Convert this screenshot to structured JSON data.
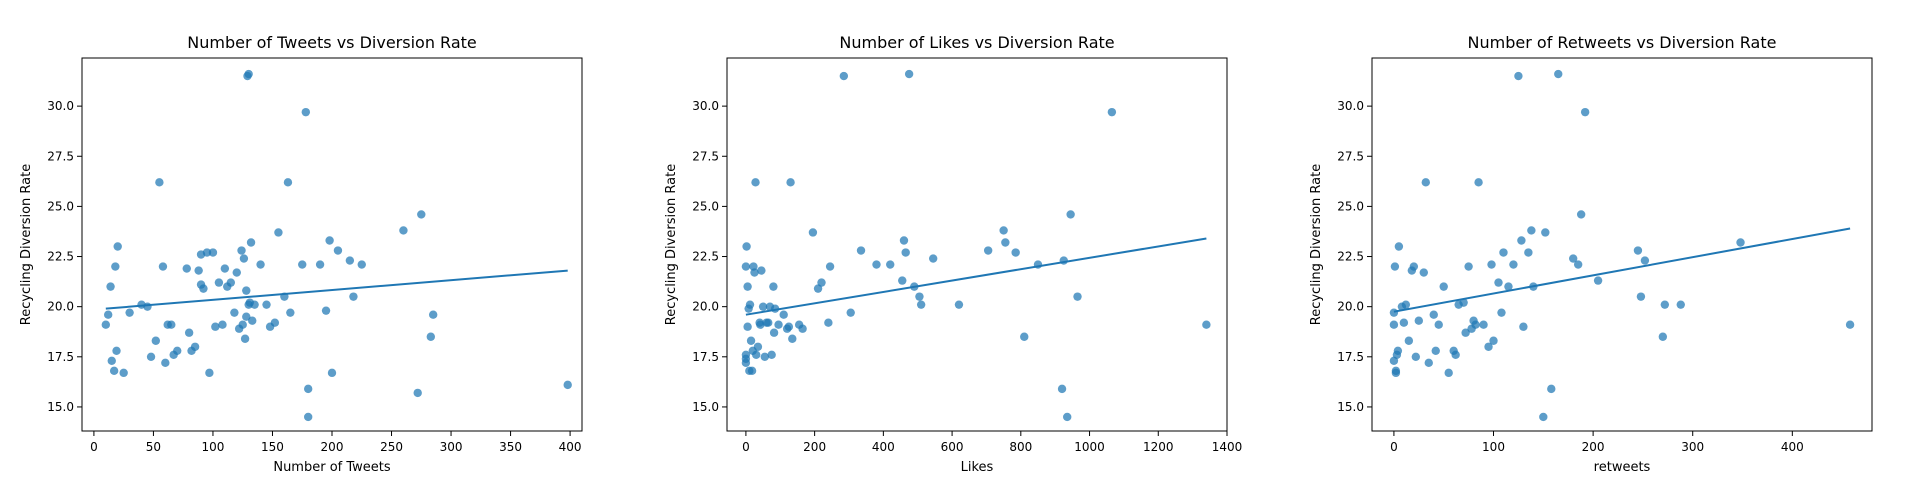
{
  "chart_data": [
    {
      "type": "scatter",
      "title": "Number of Tweets vs Diversion Rate",
      "xlabel": "Number of Tweets",
      "ylabel": "Recycling Diversion Rate",
      "xlim": [
        -10,
        410
      ],
      "ylim": [
        13.8,
        32.4
      ],
      "xticks": [
        0,
        50,
        100,
        150,
        200,
        250,
        300,
        350,
        400
      ],
      "yticks": [
        15.0,
        17.5,
        20.0,
        22.5,
        25.0,
        27.5,
        30.0
      ],
      "grid": false,
      "point_color": "#1f77b4",
      "trendline": {
        "x": [
          10,
          398
        ],
        "y": [
          19.9,
          21.8
        ]
      },
      "x": [
        10,
        12,
        14,
        15,
        17,
        18,
        19,
        20,
        25,
        30,
        40,
        45,
        48,
        52,
        55,
        58,
        60,
        62,
        65,
        67,
        70,
        78,
        80,
        82,
        85,
        88,
        90,
        90,
        92,
        95,
        97,
        100,
        102,
        105,
        108,
        110,
        112,
        115,
        118,
        120,
        122,
        124,
        125,
        126,
        127,
        128,
        128,
        129,
        130,
        130,
        131,
        132,
        133,
        135,
        140,
        145,
        148,
        152,
        155,
        160,
        163,
        165,
        175,
        178,
        180,
        180,
        190,
        195,
        198,
        200,
        205,
        215,
        218,
        225,
        260,
        272,
        275,
        283,
        285,
        398
      ],
      "y": [
        19.1,
        19.6,
        21.0,
        17.3,
        16.8,
        22.0,
        17.8,
        23.0,
        16.7,
        19.7,
        20.1,
        20.0,
        17.5,
        18.3,
        26.2,
        22.0,
        17.2,
        19.1,
        19.1,
        17.6,
        17.8,
        21.9,
        18.7,
        17.8,
        18.0,
        21.8,
        21.1,
        22.6,
        20.9,
        22.7,
        16.7,
        22.7,
        19.0,
        21.2,
        19.1,
        21.9,
        21.0,
        21.2,
        19.7,
        21.7,
        18.9,
        22.8,
        19.1,
        22.4,
        18.4,
        19.5,
        20.8,
        31.5,
        31.6,
        20.1,
        20.2,
        23.2,
        19.3,
        20.1,
        22.1,
        20.1,
        19.0,
        19.2,
        23.7,
        20.5,
        26.2,
        19.7,
        22.1,
        29.7,
        15.9,
        14.5,
        22.1,
        19.8,
        23.3,
        16.7,
        22.8,
        22.3,
        20.5,
        22.1,
        23.8,
        15.7,
        24.6,
        18.5,
        19.6,
        16.1
      ]
    },
    {
      "type": "scatter",
      "title": "Number of Likes vs Diversion Rate",
      "xlabel": "Likes",
      "ylabel": "Recycling Diversion Rate",
      "xlim": [
        -55,
        1400
      ],
      "ylim": [
        13.8,
        32.4
      ],
      "xticks": [
        0,
        200,
        400,
        600,
        800,
        1000,
        1200,
        1400
      ],
      "yticks": [
        15.0,
        17.5,
        20.0,
        22.5,
        25.0,
        27.5,
        30.0
      ],
      "grid": false,
      "point_color": "#1f77b4",
      "trendline": {
        "x": [
          0,
          1340
        ],
        "y": [
          19.6,
          23.4
        ]
      },
      "x": [
        0,
        0,
        0,
        0,
        2,
        5,
        5,
        8,
        10,
        12,
        15,
        18,
        20,
        22,
        25,
        28,
        30,
        35,
        40,
        42,
        45,
        50,
        55,
        60,
        65,
        70,
        75,
        80,
        82,
        85,
        95,
        110,
        120,
        125,
        130,
        135,
        155,
        165,
        195,
        210,
        220,
        240,
        245,
        285,
        305,
        335,
        380,
        420,
        455,
        460,
        465,
        475,
        490,
        505,
        510,
        545,
        620,
        705,
        750,
        755,
        785,
        810,
        850,
        920,
        925,
        935,
        945,
        965,
        1065,
        1340
      ],
      "y": [
        22.0,
        17.2,
        17.4,
        17.6,
        23.0,
        19.0,
        21.0,
        19.9,
        16.8,
        20.1,
        18.3,
        16.8,
        17.8,
        22.0,
        21.7,
        26.2,
        17.6,
        18.0,
        19.2,
        19.1,
        21.8,
        20.0,
        17.5,
        19.2,
        19.2,
        20.0,
        17.6,
        21.0,
        18.7,
        19.9,
        19.1,
        19.6,
        18.9,
        19.0,
        26.2,
        18.4,
        19.1,
        18.9,
        23.7,
        20.9,
        21.2,
        19.2,
        22.0,
        31.5,
        19.7,
        22.8,
        22.1,
        22.1,
        21.3,
        23.3,
        22.7,
        31.6,
        21.0,
        20.5,
        20.1,
        22.4,
        20.1,
        22.8,
        23.8,
        23.2,
        22.7,
        18.5,
        22.1,
        15.9,
        22.3,
        14.5,
        24.6,
        20.5,
        29.7,
        19.1
      ]
    },
    {
      "type": "scatter",
      "title": "Number of Retweets vs Diversion Rate",
      "xlabel": "retweets",
      "ylabel": "Recycling Diversion Rate",
      "xlim": [
        -22,
        480
      ],
      "ylim": [
        13.8,
        32.4
      ],
      "xticks": [
        0,
        100,
        200,
        300,
        400
      ],
      "yticks": [
        15.0,
        17.5,
        20.0,
        22.5,
        25.0,
        27.5,
        30.0
      ],
      "grid": false,
      "point_color": "#1f77b4",
      "trendline": {
        "x": [
          0,
          458
        ],
        "y": [
          19.75,
          23.9
        ]
      },
      "x": [
        0,
        0,
        0,
        1,
        2,
        2,
        3,
        4,
        5,
        8,
        10,
        12,
        15,
        18,
        20,
        22,
        25,
        30,
        32,
        35,
        40,
        42,
        45,
        50,
        55,
        60,
        62,
        65,
        70,
        72,
        75,
        78,
        80,
        82,
        85,
        90,
        95,
        98,
        100,
        105,
        108,
        110,
        115,
        120,
        125,
        128,
        130,
        135,
        138,
        140,
        150,
        152,
        158,
        165,
        180,
        185,
        188,
        192,
        205,
        245,
        248,
        252,
        270,
        272,
        288,
        348,
        458
      ],
      "y": [
        19.1,
        17.3,
        19.7,
        22.0,
        16.7,
        16.8,
        17.6,
        17.8,
        23.0,
        20.0,
        19.2,
        20.1,
        18.3,
        21.8,
        22.0,
        17.5,
        19.3,
        21.7,
        26.2,
        17.2,
        19.6,
        17.8,
        19.1,
        21.0,
        16.7,
        17.8,
        17.6,
        20.1,
        20.2,
        18.7,
        22.0,
        18.9,
        19.3,
        19.1,
        26.2,
        19.1,
        18.0,
        22.1,
        18.3,
        21.2,
        19.7,
        22.7,
        21.0,
        22.1,
        31.5,
        23.3,
        19.0,
        22.7,
        23.8,
        21.0,
        14.5,
        23.7,
        15.9,
        31.6,
        22.4,
        22.1,
        24.6,
        29.7,
        21.3,
        22.8,
        20.5,
        22.3,
        18.5,
        20.1,
        20.1,
        23.2,
        19.1
      ]
    }
  ]
}
